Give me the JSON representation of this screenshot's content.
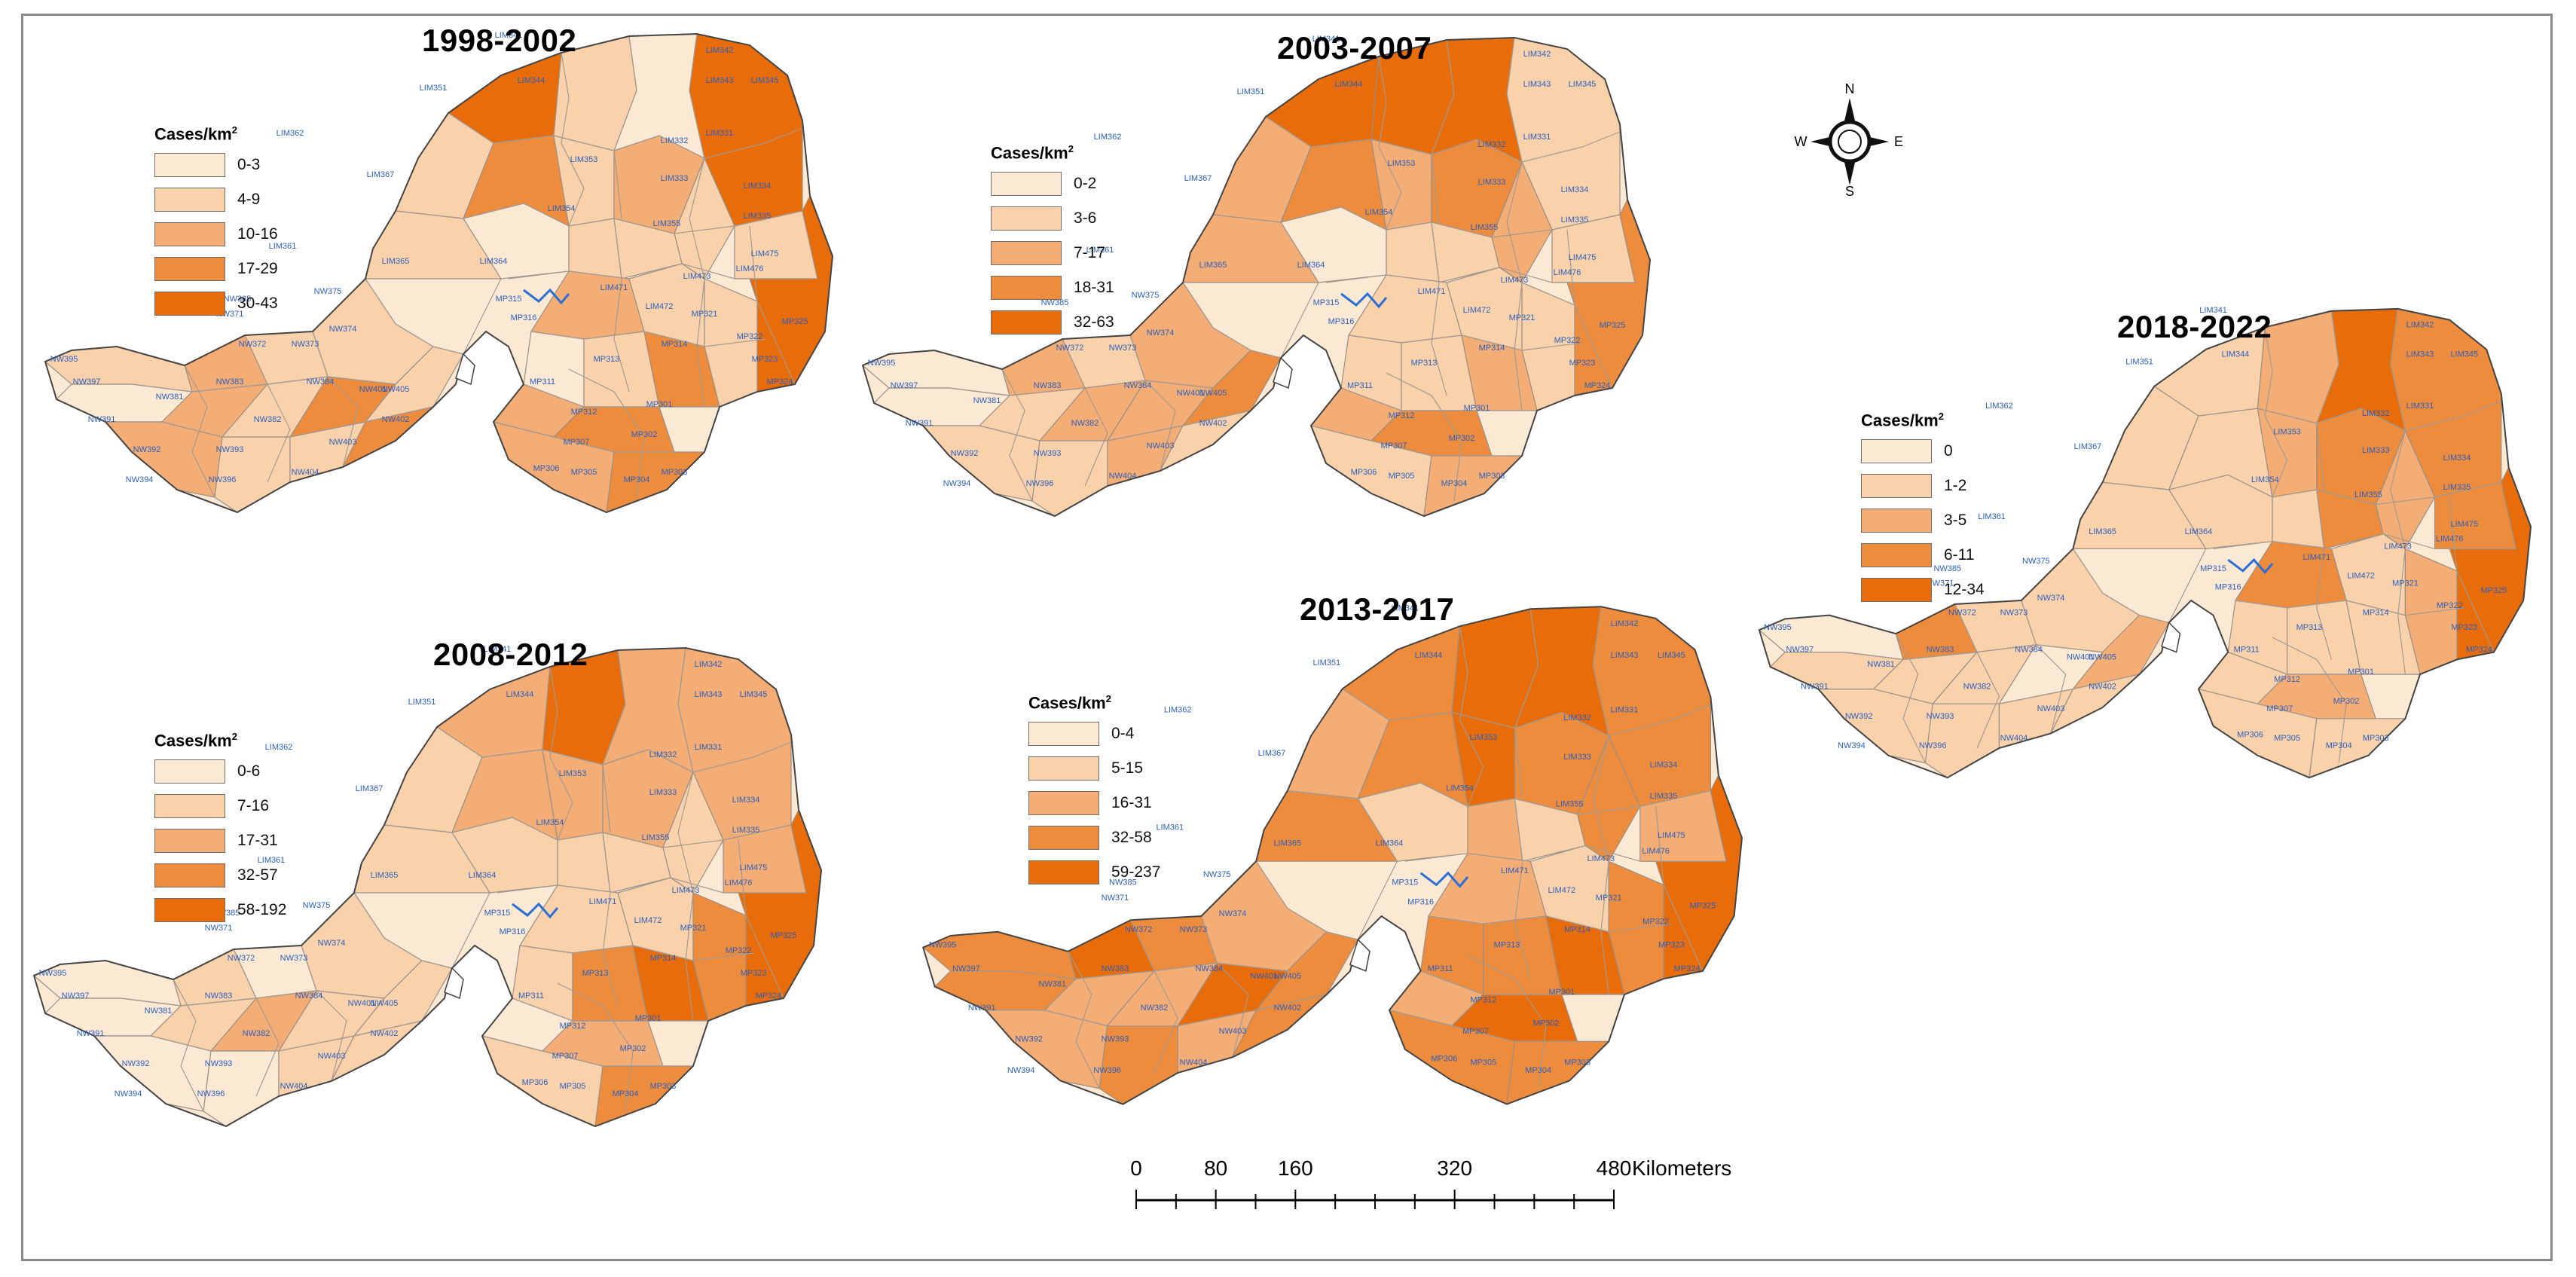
{
  "legend_title": "Cases/km",
  "legend_title_sup": "2",
  "colors": [
    "#fbe9d4",
    "#f9d2ac",
    "#f3ad75",
    "#ee8c3d",
    "#e86c09"
  ],
  "panels": [
    {
      "title": "1998-2002",
      "ranges": [
        "0-3",
        "4-9",
        "10-16",
        "17-29",
        "30-43"
      ]
    },
    {
      "title": "2003-2007",
      "ranges": [
        "0-2",
        "3-6",
        "7-17",
        "18-31",
        "32-63"
      ]
    },
    {
      "title": "2018-2022",
      "ranges": [
        "0",
        "1-2",
        "3-5",
        "6-11",
        "12-34"
      ]
    },
    {
      "title": "2008-2012",
      "ranges": [
        "0-6",
        "7-16",
        "17-31",
        "32-57",
        "58-192"
      ]
    },
    {
      "title": "2013-2017",
      "ranges": [
        "0-4",
        "5-15",
        "16-31",
        "32-58",
        "59-237"
      ]
    }
  ],
  "district_labels": [
    "LIM341",
    "LIM342",
    "LIM343",
    "LIM344",
    "LIM345",
    "LIM351",
    "LIM362",
    "LIM367",
    "LIM353",
    "LIM354",
    "LIM333",
    "LIM334",
    "LIM331",
    "LIM335",
    "LIM361",
    "LIM365",
    "LIM364",
    "LIM473",
    "LIM476",
    "LIM471",
    "LIM472",
    "LIM475",
    "LIM332",
    "LIM355",
    "MP325",
    "MP324",
    "MP323",
    "MP322",
    "MP321",
    "MP314",
    "MP313",
    "MP312",
    "MP311",
    "MP301",
    "MP302",
    "MP303",
    "MP304",
    "MP305",
    "MP306",
    "MP307",
    "MP315",
    "MP316",
    "NW375",
    "NW385",
    "NW374",
    "NW373",
    "NW372",
    "NW371",
    "NW384",
    "NW383",
    "NW381",
    "NW382",
    "NW391",
    "NW392",
    "NW393",
    "NW394",
    "NW395",
    "NW396",
    "NW397",
    "NW401",
    "NW402",
    "NW403",
    "NW404",
    "NW405"
  ],
  "north_arrow": {
    "n": "N",
    "s": "S",
    "e": "E",
    "w": "W"
  },
  "scale": {
    "ticks": [
      "0",
      "80",
      "160",
      "320",
      "480"
    ],
    "tick_values": [
      0,
      80,
      160,
      320,
      480
    ],
    "unit": "Kilometers"
  }
}
